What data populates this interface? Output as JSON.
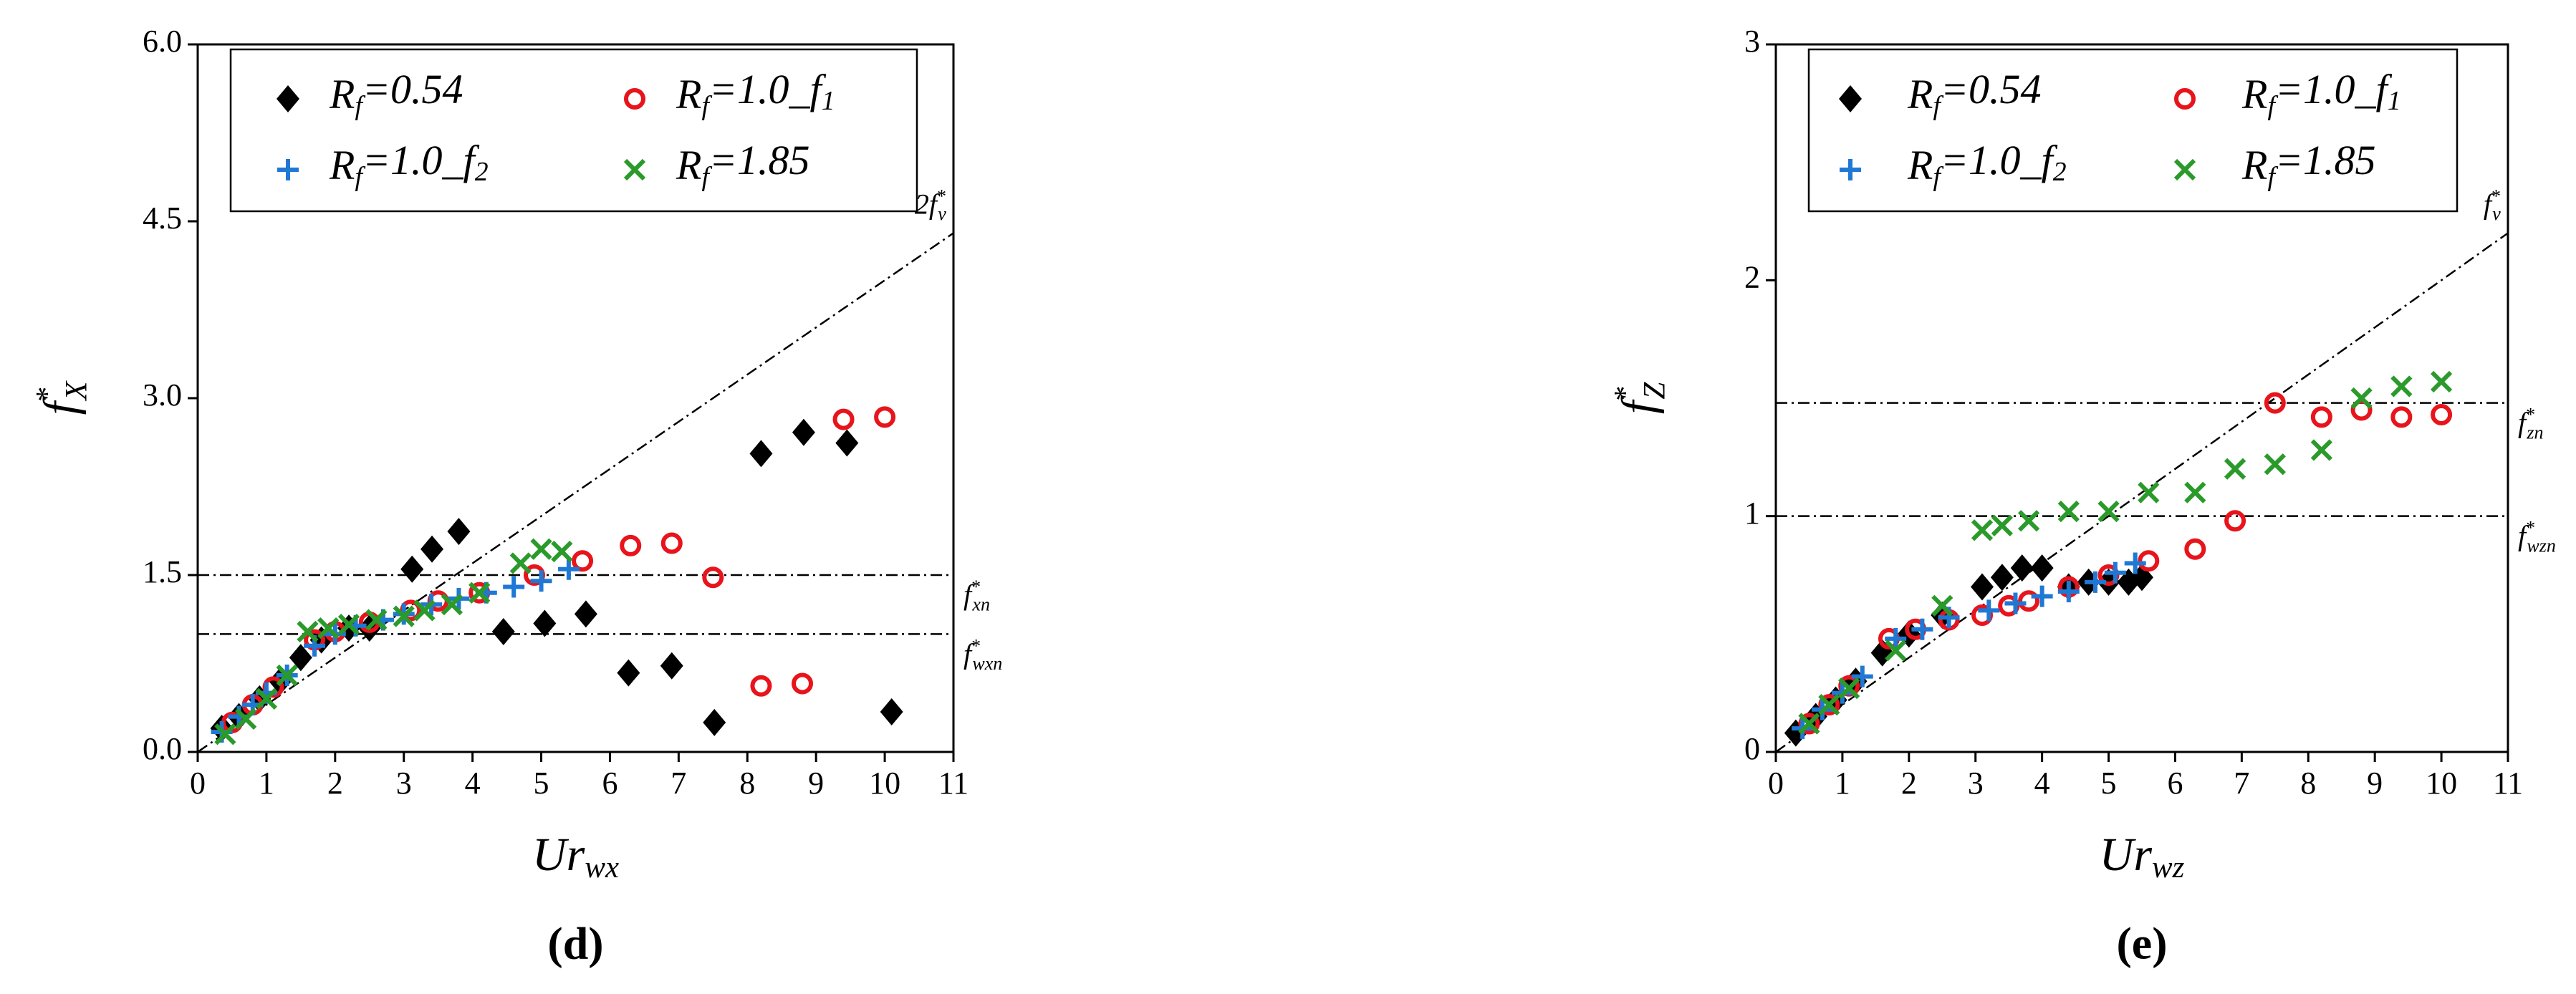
{
  "chart_data": [
    {
      "type": "scatter",
      "panel_label": "(d)",
      "xlabel": {
        "base": "Ur",
        "sub": "wx"
      },
      "ylabel": {
        "base": "f",
        "sup": "*",
        "sub": "X"
      },
      "xlim": [
        0,
        11
      ],
      "xticks": [
        0,
        1,
        2,
        3,
        4,
        5,
        6,
        7,
        8,
        9,
        10,
        11
      ],
      "ylim": [
        0,
        6.0
      ],
      "yticks": [
        {
          "value": 0,
          "label": "0.0"
        },
        {
          "value": 1.5,
          "label": "1.5"
        },
        {
          "value": 3.0,
          "label": "3.0"
        },
        {
          "value": 4.5,
          "label": "4.5"
        },
        {
          "value": 6.0,
          "label": "6.0"
        }
      ],
      "ref_lines": [
        {
          "label": {
            "base": "2f",
            "sup": "*",
            "sub": "v"
          },
          "x": [
            0,
            11
          ],
          "y": [
            0,
            4.4
          ]
        },
        {
          "label": {
            "base": "f",
            "sup": "*",
            "sub": "xn"
          },
          "x": [
            0,
            11
          ],
          "y": [
            1.5,
            1.5
          ]
        },
        {
          "label": {
            "base": "f",
            "sup": "*",
            "sub": "wxn"
          },
          "x": [
            0,
            11
          ],
          "y": [
            1.0,
            1.0
          ]
        }
      ],
      "series": [
        {
          "name": {
            "base": "R",
            "sub": "f",
            "rest": "=0.54"
          },
          "color": "#000000",
          "marker": "diamond",
          "x": [
            0.35,
            0.6,
            0.9,
            1.2,
            1.5,
            1.8,
            2.2,
            2.5,
            3.12,
            3.41,
            3.8,
            4.45,
            5.05,
            5.65,
            6.27,
            6.9,
            7.52,
            8.2,
            8.82,
            9.45,
            10.1
          ],
          "y": [
            0.2,
            0.3,
            0.45,
            0.6,
            0.8,
            0.95,
            1.05,
            1.05,
            1.55,
            1.72,
            1.87,
            1.02,
            1.09,
            1.17,
            0.67,
            0.73,
            0.25,
            2.53,
            2.71,
            2.62,
            0.34
          ]
        },
        {
          "name": {
            "base": "R",
            "sub": "f",
            "rest": "=1.0_f",
            "sub2": "1"
          },
          "color": "#e8141c",
          "marker": "circle",
          "x": [
            0.5,
            0.8,
            1.1,
            1.7,
            2.0,
            2.5,
            3.1,
            3.5,
            4.1,
            4.9,
            5.6,
            6.3,
            6.9,
            7.5,
            8.2,
            8.8,
            9.4,
            10.0
          ],
          "y": [
            0.25,
            0.4,
            0.55,
            0.95,
            1.02,
            1.1,
            1.2,
            1.28,
            1.35,
            1.5,
            1.62,
            1.75,
            1.77,
            1.48,
            0.56,
            0.58,
            2.82,
            2.84
          ]
        },
        {
          "name": {
            "base": "R",
            "sub": "f",
            "rest": "=1.0_f",
            "sub2": "2"
          },
          "color": "#1f78d4",
          "marker": "plus",
          "x": [
            0.35,
            0.6,
            0.8,
            1.0,
            1.3,
            1.7,
            2.0,
            2.3,
            2.7,
            3.0,
            3.4,
            3.8,
            4.2,
            4.6,
            5.0,
            5.4
          ],
          "y": [
            0.17,
            0.3,
            0.4,
            0.5,
            0.65,
            0.9,
            1.0,
            1.07,
            1.12,
            1.17,
            1.25,
            1.3,
            1.35,
            1.4,
            1.45,
            1.55
          ]
        },
        {
          "name": {
            "base": "R",
            "sub": "f",
            "rest": "=1.85"
          },
          "color": "#2a9a2a",
          "marker": "x",
          "x": [
            0.4,
            0.7,
            1.0,
            1.3,
            1.6,
            1.9,
            2.2,
            2.6,
            3.0,
            3.3,
            3.7,
            4.1,
            4.7,
            5.0,
            5.3
          ],
          "y": [
            0.15,
            0.28,
            0.45,
            0.65,
            1.02,
            1.05,
            1.08,
            1.12,
            1.15,
            1.2,
            1.25,
            1.35,
            1.6,
            1.72,
            1.7
          ]
        }
      ]
    },
    {
      "type": "scatter",
      "panel_label": "(e)",
      "xlabel": {
        "base": "Ur",
        "sub": "wz"
      },
      "ylabel": {
        "base": "f",
        "sup": "*",
        "sub": "Z"
      },
      "xlim": [
        0,
        11
      ],
      "xticks": [
        0,
        1,
        2,
        3,
        4,
        5,
        6,
        7,
        8,
        9,
        10,
        11
      ],
      "ylim": [
        0,
        3
      ],
      "yticks": [
        0,
        1,
        2,
        3
      ],
      "ref_lines": [
        {
          "label": {
            "base": "f",
            "sup": "*",
            "sub": "v"
          },
          "x": [
            0,
            11
          ],
          "y": [
            0,
            2.2
          ]
        },
        {
          "label": {
            "base": "f",
            "sup": "*",
            "sub": "zn"
          },
          "x": [
            0,
            11
          ],
          "y": [
            1.48,
            1.48
          ]
        },
        {
          "label": {
            "base": "f",
            "sup": "*",
            "sub": "wzn"
          },
          "x": [
            0,
            11
          ],
          "y": [
            1.0,
            1.0
          ]
        }
      ],
      "series": [
        {
          "name": {
            "base": "R",
            "sub": "f",
            "rest": "=0.54"
          },
          "color": "#000000",
          "marker": "diamond",
          "x": [
            0.3,
            0.6,
            0.9,
            1.2,
            1.6,
            2.0,
            2.5,
            3.1,
            3.4,
            3.7,
            4.0,
            4.4,
            4.7,
            5.0,
            5.3,
            5.5
          ],
          "y": [
            0.08,
            0.15,
            0.22,
            0.3,
            0.42,
            0.5,
            0.58,
            0.7,
            0.74,
            0.78,
            0.78,
            0.7,
            0.72,
            0.72,
            0.72,
            0.74
          ]
        },
        {
          "name": {
            "base": "R",
            "sub": "f",
            "rest": "=1.0_f",
            "sub2": "1"
          },
          "color": "#e8141c",
          "marker": "circle",
          "x": [
            0.5,
            0.8,
            1.1,
            1.7,
            2.1,
            2.6,
            3.1,
            3.5,
            3.8,
            4.4,
            5.0,
            5.6,
            6.3,
            6.9,
            7.5,
            8.2,
            8.8,
            9.4,
            10.0
          ],
          "y": [
            0.12,
            0.2,
            0.28,
            0.48,
            0.52,
            0.56,
            0.58,
            0.62,
            0.64,
            0.7,
            0.75,
            0.81,
            0.86,
            0.98,
            1.48,
            1.42,
            1.45,
            1.42,
            1.43
          ]
        },
        {
          "name": {
            "base": "R",
            "sub": "f",
            "rest": "=1.0_f",
            "sub2": "2"
          },
          "color": "#1f78d4",
          "marker": "plus",
          "x": [
            0.4,
            0.7,
            1.0,
            1.3,
            1.8,
            2.2,
            2.6,
            3.2,
            3.6,
            4.0,
            4.4,
            4.8,
            5.1,
            5.4
          ],
          "y": [
            0.1,
            0.18,
            0.25,
            0.32,
            0.48,
            0.52,
            0.57,
            0.6,
            0.63,
            0.66,
            0.68,
            0.72,
            0.76,
            0.8
          ]
        },
        {
          "name": {
            "base": "R",
            "sub": "f",
            "rest": "=1.85"
          },
          "color": "#2a9a2a",
          "marker": "x",
          "x": [
            0.5,
            0.8,
            1.1,
            1.8,
            2.5,
            3.1,
            3.4,
            3.8,
            4.4,
            5.0,
            5.6,
            6.3,
            6.9,
            7.5,
            8.2,
            8.8,
            9.4,
            10.0
          ],
          "y": [
            0.12,
            0.2,
            0.27,
            0.43,
            0.62,
            0.94,
            0.96,
            0.98,
            1.02,
            1.02,
            1.1,
            1.1,
            1.2,
            1.22,
            1.28,
            1.5,
            1.55,
            1.57
          ]
        }
      ]
    }
  ]
}
